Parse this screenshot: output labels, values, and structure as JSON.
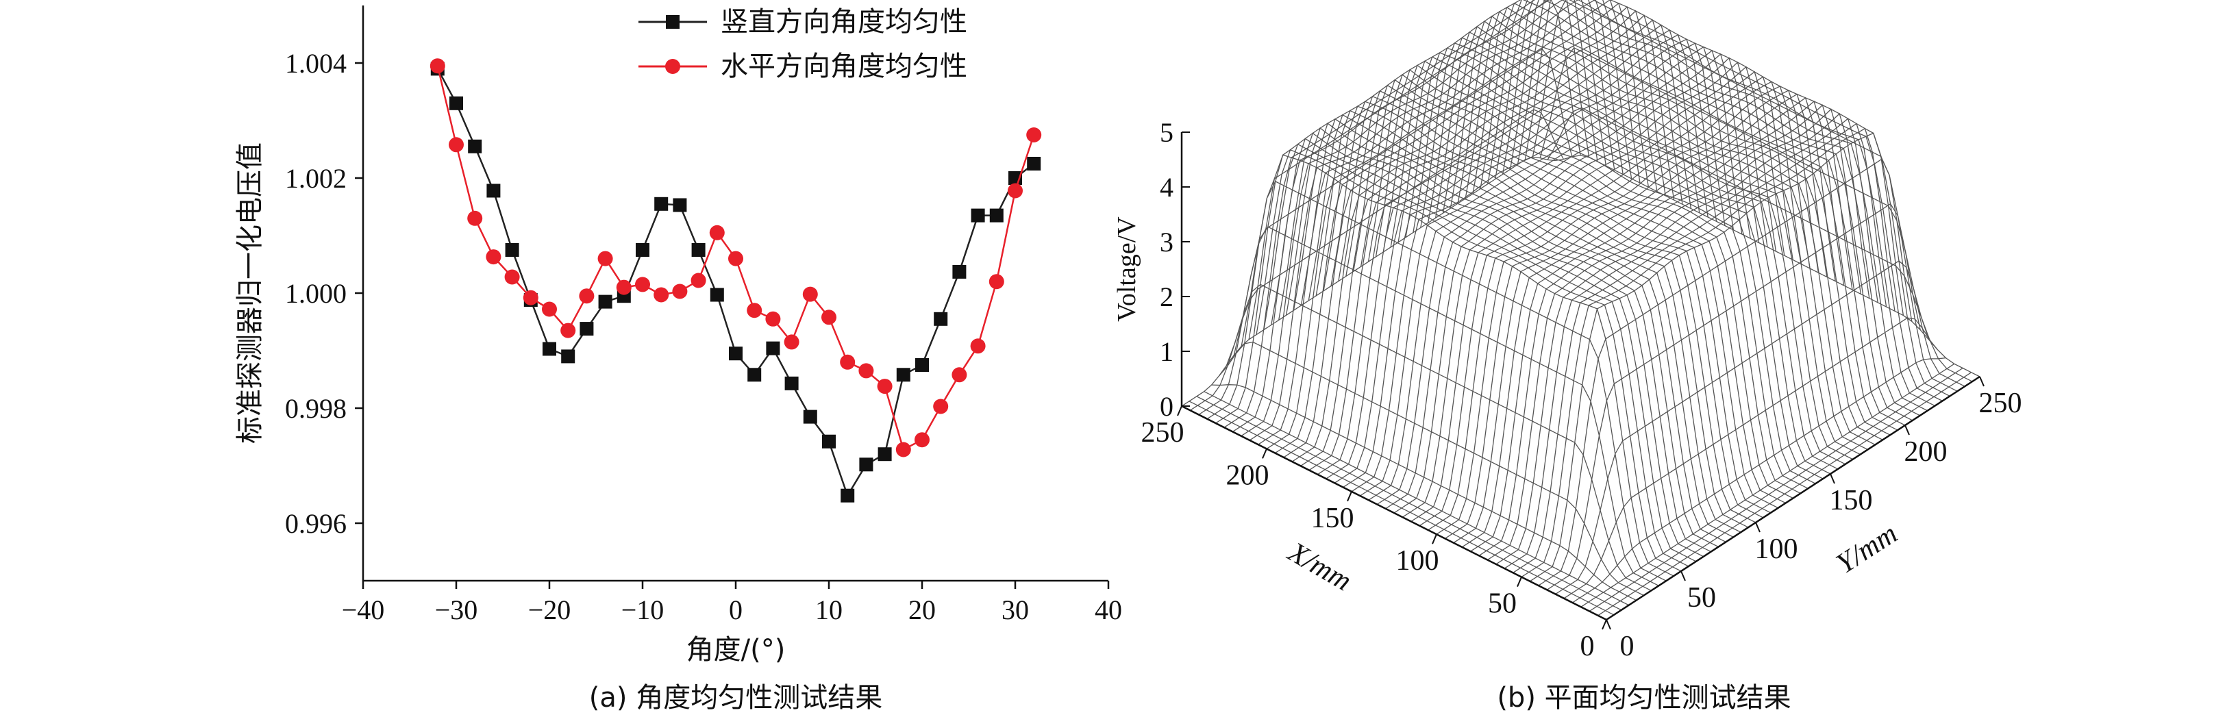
{
  "chart_data": [
    {
      "type": "line",
      "caption": "(a) 角度均匀性测试结果",
      "xlabel": "角度/(°)",
      "ylabel": "标准探测器归一化电压值",
      "xlim": [
        -40,
        40
      ],
      "ylim": [
        0.995,
        1.005
      ],
      "xticks": [
        -40,
        -30,
        -20,
        -10,
        0,
        10,
        20,
        30,
        40
      ],
      "yticks": [
        0.996,
        0.998,
        1.0,
        1.002,
        1.004
      ],
      "xtick_labels": [
        "−40",
        "−30",
        "−20",
        "−10",
        "0",
        "10",
        "20",
        "30",
        "40"
      ],
      "ytick_labels": [
        "0.996",
        "0.998",
        "1.000",
        "1.002",
        "1.004"
      ],
      "legend_position": "top-right",
      "grid": false,
      "series": [
        {
          "name": "竖直方向角度均匀性",
          "color": "#222222",
          "marker": "square",
          "x": [
            -32,
            -30,
            -28,
            -26,
            -24,
            -22,
            -20,
            -18,
            -16,
            -14,
            -12,
            -10,
            -8,
            -6,
            -4,
            -2,
            0,
            2,
            4,
            6,
            8,
            10,
            12,
            14,
            16,
            18,
            20,
            22,
            24,
            26,
            28,
            30,
            32
          ],
          "y": [
            1.0039,
            1.0033,
            1.00255,
            1.00178,
            1.00075,
            0.99988,
            0.99903,
            0.9989,
            0.99938,
            0.99985,
            0.99995,
            1.00075,
            1.00155,
            1.00153,
            1.00075,
            0.99997,
            0.99895,
            0.99858,
            0.99904,
            0.99843,
            0.99785,
            0.99742,
            0.99648,
            0.99702,
            0.9972,
            0.99858,
            0.99875,
            0.99955,
            1.00037,
            1.00135,
            1.00135,
            1.002,
            1.00225
          ]
        },
        {
          "name": "水平方向角度均匀性",
          "color": "#e8202a",
          "marker": "circle",
          "x": [
            -32,
            -30,
            -28,
            -26,
            -24,
            -22,
            -20,
            -18,
            -16,
            -14,
            -12,
            -10,
            -8,
            -6,
            -4,
            -2,
            0,
            2,
            4,
            6,
            8,
            10,
            12,
            14,
            16,
            18,
            20,
            22,
            24,
            26,
            28,
            30,
            32
          ],
          "y": [
            1.00395,
            1.00258,
            1.0013,
            1.00063,
            1.00028,
            0.99992,
            0.99972,
            0.99935,
            0.99995,
            1.0006,
            1.0001,
            1.00015,
            0.99997,
            1.00003,
            1.00022,
            1.00105,
            1.0006,
            0.9997,
            0.99955,
            0.99915,
            0.99998,
            0.99958,
            0.9988,
            0.99865,
            0.99838,
            0.99728,
            0.99745,
            0.99803,
            0.99858,
            0.99908,
            1.0002,
            1.00178,
            1.00275
          ]
        }
      ]
    },
    {
      "type": "surface",
      "caption": "(b) 平面均匀性测试结果",
      "xlabel": "X/mm",
      "ylabel": "Y/mm",
      "zlabel": "Voltage/V",
      "xlim": [
        0,
        250
      ],
      "ylim": [
        0,
        250
      ],
      "zlim": [
        0,
        5
      ],
      "xticks": [
        0,
        50,
        100,
        150,
        200,
        250
      ],
      "yticks": [
        0,
        50,
        100,
        150,
        200,
        250
      ],
      "zticks": [
        0,
        1,
        2,
        3,
        4,
        5
      ],
      "grid_lines": 50,
      "plateau_value": 4.0,
      "plateau_range": [
        45,
        230
      ],
      "line_color": "#555555"
    }
  ]
}
